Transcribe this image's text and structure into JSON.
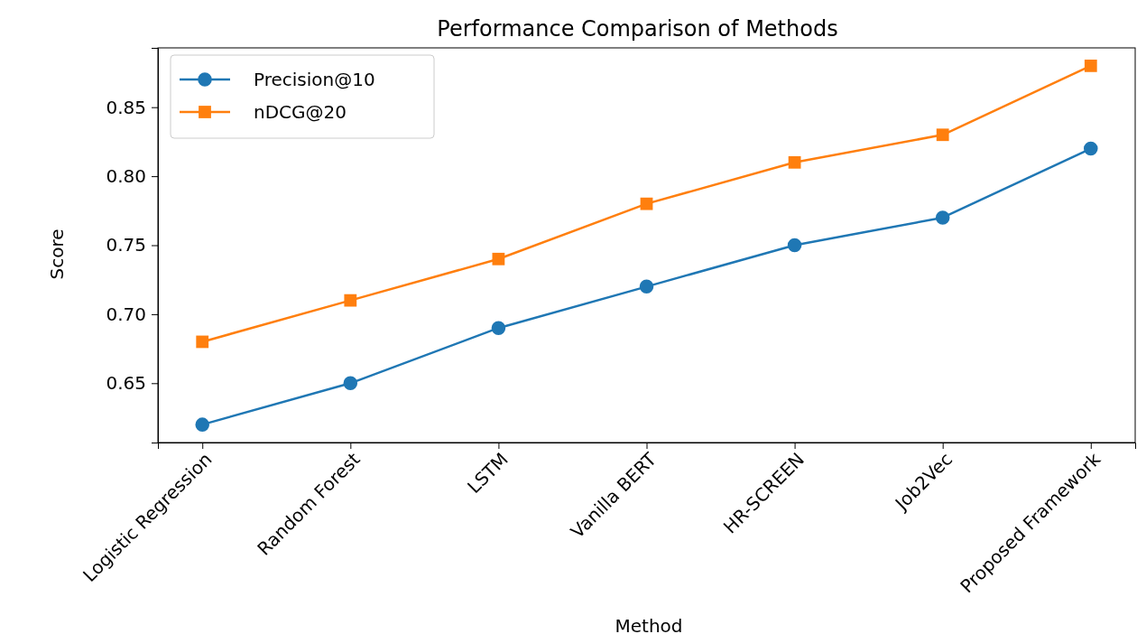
{
  "chart_data": {
    "type": "line",
    "title": "Performance Comparison of Methods",
    "xlabel": "Method",
    "ylabel": "Score",
    "categories": [
      "Logistic Regression",
      "Random Forest",
      "LSTM",
      "Vanilla BERT",
      "HR-SCREEN",
      "Job2Vec",
      "Proposed Framework"
    ],
    "series": [
      {
        "name": "Precision@10",
        "color": "#1f77b4",
        "marker": "circle",
        "values": [
          0.62,
          0.65,
          0.69,
          0.72,
          0.75,
          0.77,
          0.82
        ]
      },
      {
        "name": "nDCG@20",
        "color": "#ff7f0e",
        "marker": "square",
        "values": [
          0.68,
          0.71,
          0.74,
          0.78,
          0.81,
          0.83,
          0.88
        ]
      }
    ],
    "ylim": [
      0.607,
      0.893
    ],
    "yticks": [
      {
        "value": 0.65,
        "label": "0.65"
      },
      {
        "value": 0.7,
        "label": "0.70"
      },
      {
        "value": 0.75,
        "label": "0.75"
      },
      {
        "value": 0.8,
        "label": "0.80"
      },
      {
        "value": 0.85,
        "label": "0.85"
      }
    ],
    "grid": false,
    "legend": "top left",
    "line_style": "solid"
  }
}
